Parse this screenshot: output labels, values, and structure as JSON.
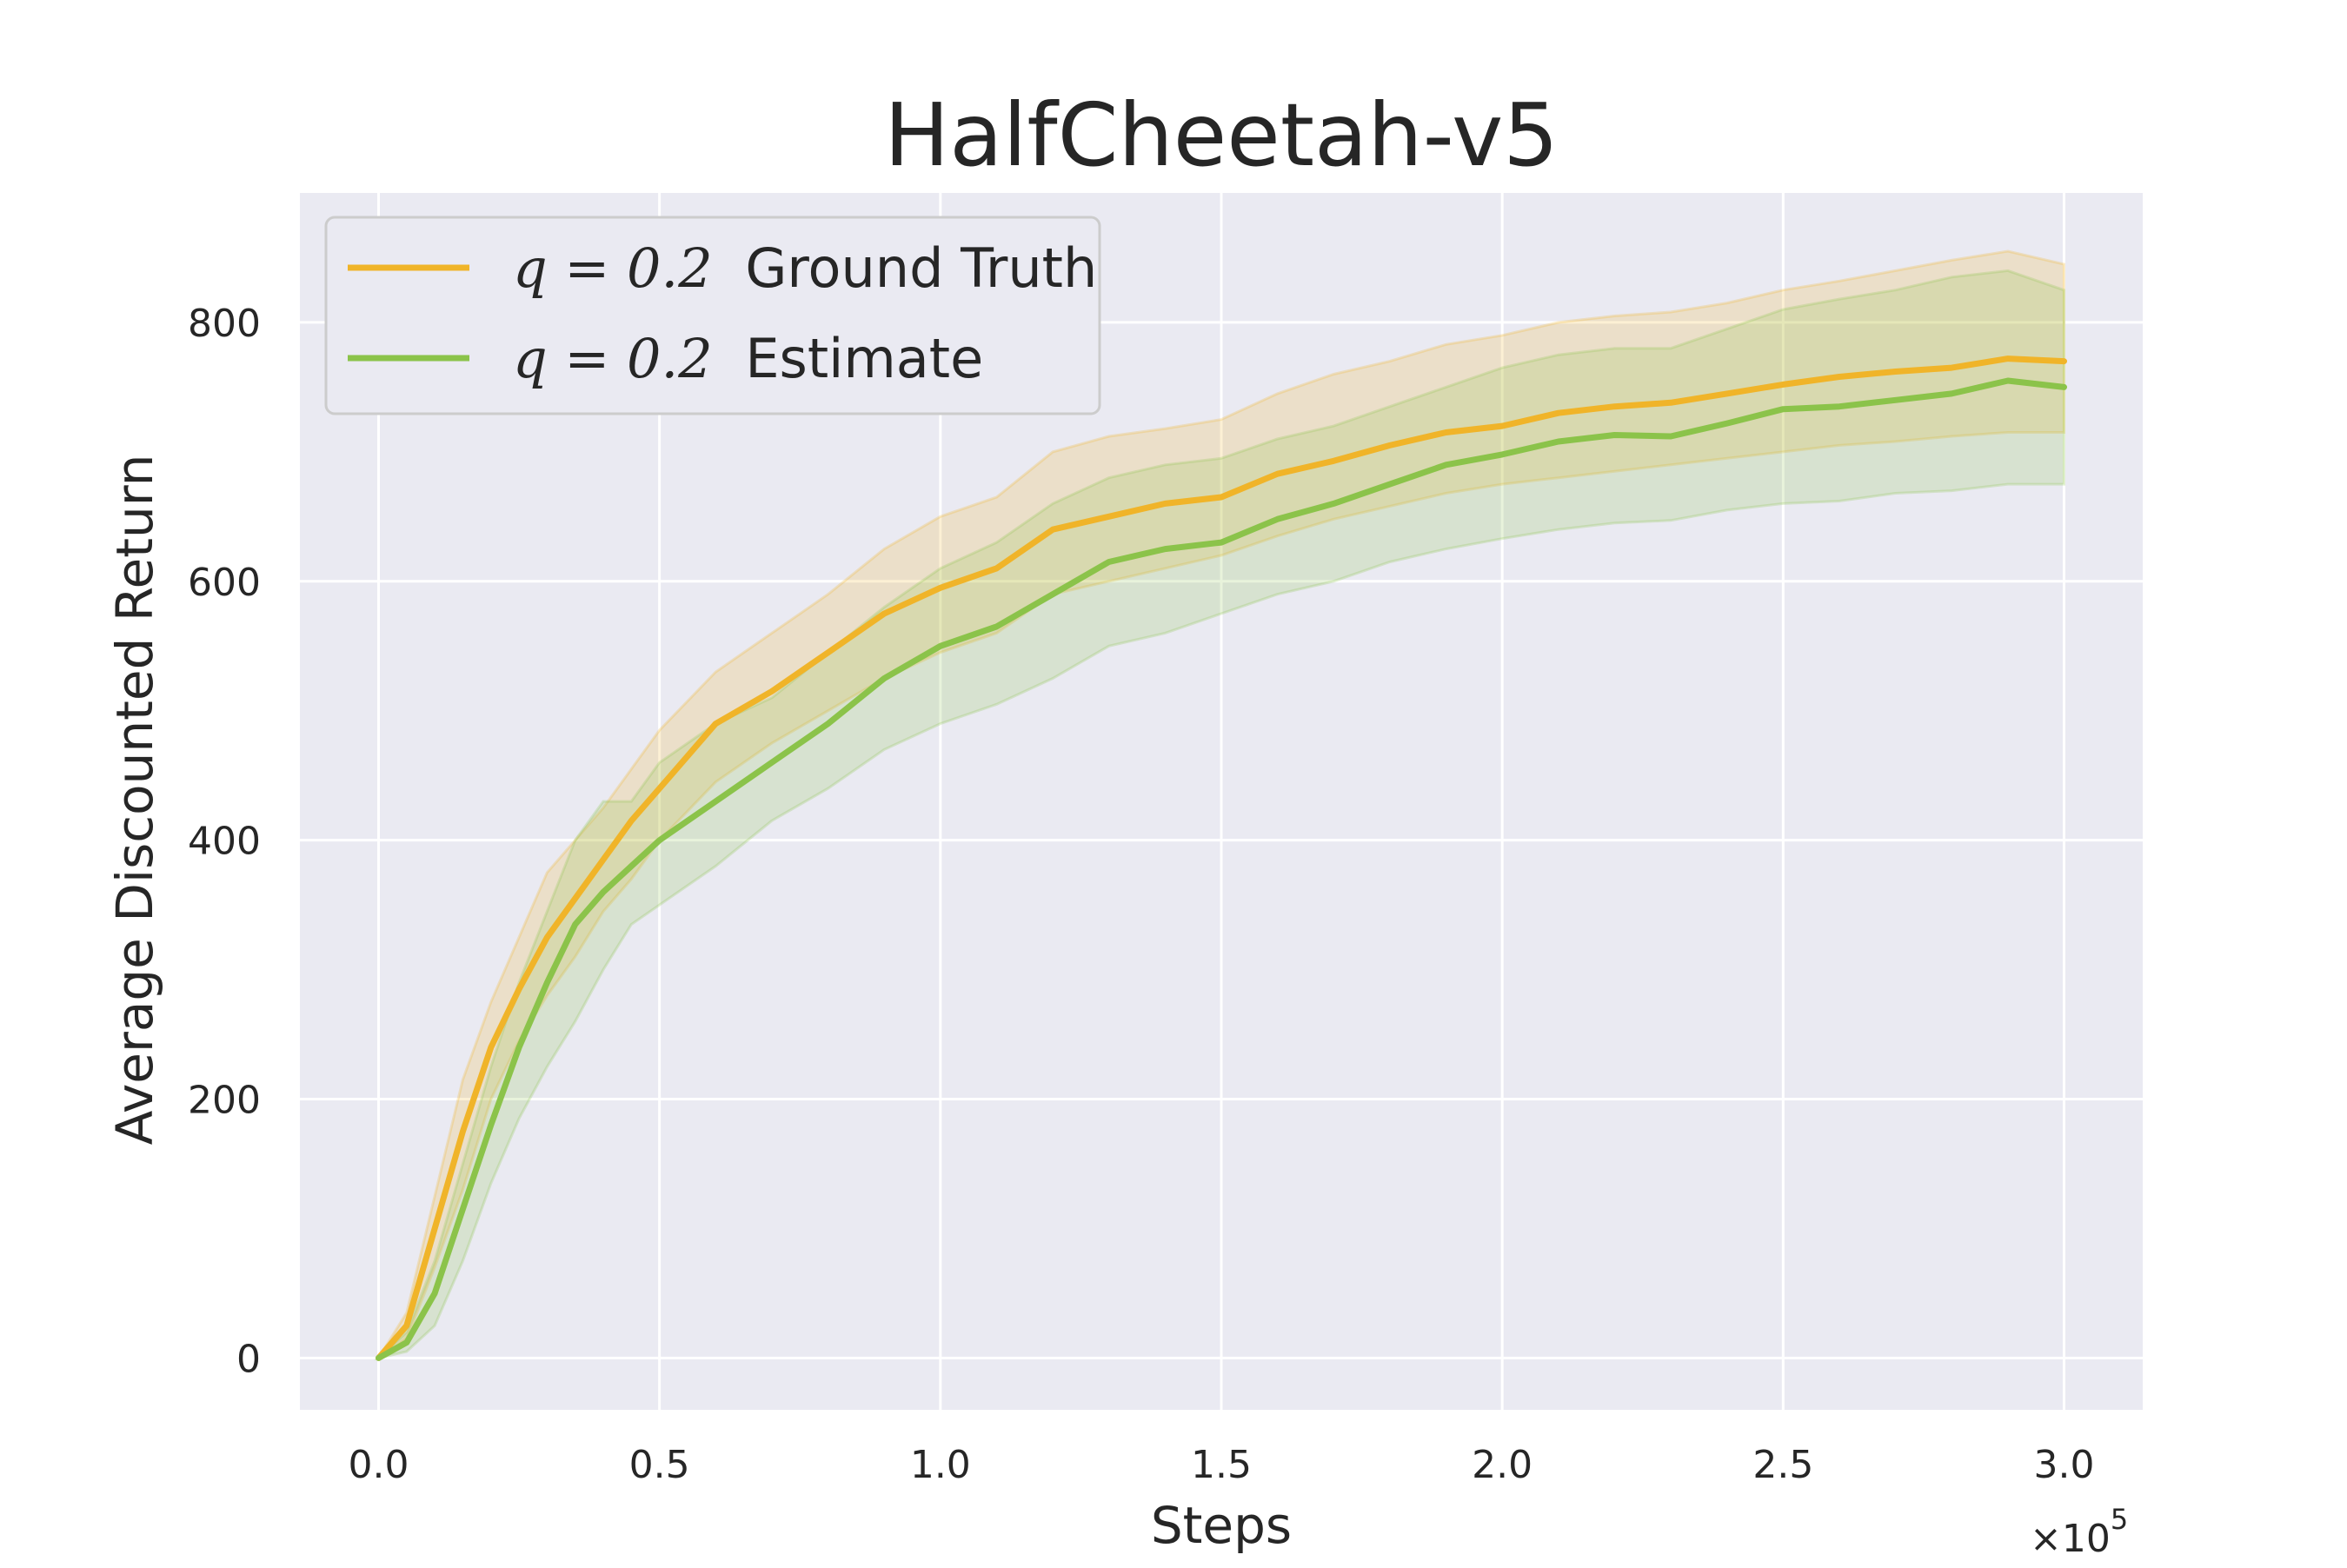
{
  "chart_data": {
    "type": "line",
    "title": "HalfCheetah-v5",
    "xlabel": "Steps",
    "ylabel": "Average Discounted Return",
    "x_multiplier_label": "×10^5",
    "xlim": [
      -0.14,
      3.14
    ],
    "ylim": [
      -40,
      900
    ],
    "x_ticks": [
      0.0,
      0.5,
      1.0,
      1.5,
      2.0,
      2.5,
      3.0
    ],
    "x_tick_labels": [
      "0.0",
      "0.5",
      "1.0",
      "1.5",
      "2.0",
      "2.5",
      "3.0"
    ],
    "y_ticks": [
      0,
      200,
      400,
      600,
      800
    ],
    "y_tick_labels": [
      "0",
      "200",
      "400",
      "600",
      "800"
    ],
    "grid": true,
    "legend_position": "top-left",
    "colors": {
      "background": "#eaeaf2",
      "grid": "#ffffff",
      "ground_truth": "#f0b429",
      "estimate": "#8bc34a"
    },
    "x": [
      0.0,
      0.05,
      0.1,
      0.15,
      0.2,
      0.25,
      0.3,
      0.35,
      0.4,
      0.45,
      0.5,
      0.6,
      0.7,
      0.8,
      0.9,
      1.0,
      1.1,
      1.2,
      1.3,
      1.4,
      1.5,
      1.6,
      1.7,
      1.8,
      1.9,
      2.0,
      2.1,
      2.2,
      2.3,
      2.4,
      2.5,
      2.6,
      2.7,
      2.8,
      2.9,
      3.0
    ],
    "series": [
      {
        "name": "q = 0.2 Ground Truth",
        "legend_math": "q = 0.2",
        "legend_text": "Ground Truth",
        "values": [
          0,
          25,
          100,
          175,
          240,
          285,
          325,
          355,
          385,
          415,
          440,
          490,
          515,
          545,
          575,
          595,
          610,
          640,
          650,
          660,
          665,
          683,
          693,
          705,
          715,
          720,
          730,
          735,
          738,
          745,
          752,
          758,
          762,
          765,
          772,
          770
        ],
        "lower": [
          0,
          15,
          70,
          130,
          200,
          245,
          280,
          310,
          345,
          370,
          400,
          445,
          475,
          500,
          525,
          545,
          560,
          590,
          600,
          610,
          620,
          635,
          648,
          658,
          668,
          675,
          680,
          685,
          690,
          695,
          700,
          705,
          708,
          712,
          715,
          715
        ],
        "upper": [
          0,
          35,
          125,
          215,
          275,
          325,
          375,
          400,
          425,
          455,
          485,
          530,
          560,
          590,
          625,
          650,
          665,
          700,
          712,
          718,
          725,
          745,
          760,
          770,
          783,
          790,
          800,
          805,
          808,
          815,
          825,
          832,
          840,
          848,
          855,
          845
        ]
      },
      {
        "name": "q = 0.2 Estimate",
        "legend_math": "q = 0.2",
        "legend_text": "Estimate",
        "values": [
          0,
          12,
          50,
          115,
          180,
          240,
          290,
          335,
          360,
          380,
          400,
          430,
          460,
          490,
          525,
          550,
          565,
          590,
          615,
          625,
          630,
          648,
          660,
          675,
          690,
          698,
          708,
          713,
          712,
          722,
          733,
          735,
          740,
          745,
          755,
          750
        ],
        "lower": [
          0,
          5,
          25,
          75,
          135,
          185,
          225,
          260,
          300,
          335,
          350,
          380,
          415,
          440,
          470,
          490,
          505,
          525,
          550,
          560,
          575,
          590,
          600,
          615,
          625,
          633,
          640,
          645,
          647,
          655,
          660,
          662,
          668,
          670,
          675,
          675
        ],
        "upper": [
          0,
          20,
          75,
          150,
          225,
          290,
          345,
          400,
          430,
          430,
          460,
          490,
          510,
          545,
          580,
          610,
          630,
          660,
          680,
          690,
          695,
          710,
          720,
          735,
          750,
          765,
          775,
          780,
          780,
          795,
          810,
          818,
          825,
          835,
          840,
          825
        ]
      }
    ]
  }
}
